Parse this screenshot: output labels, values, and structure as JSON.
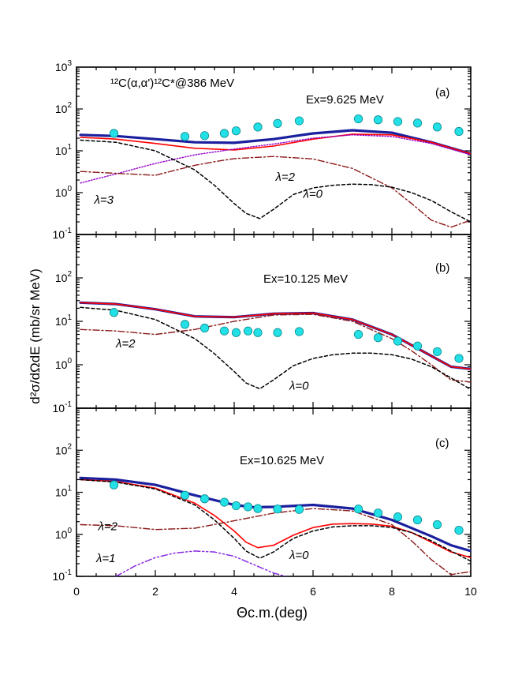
{
  "figure": {
    "ylabel": "d²σ/dΩdE (mb/sr MeV)",
    "xlabel": "Θc.m.(deg)",
    "reaction_title": "¹²C(α,α')¹²C*@386 MeV"
  },
  "chart_data": [
    {
      "type": "line",
      "panel": "(a)",
      "title": "¹²C(α,α')¹²C*@386 MeV",
      "energy_label": "Ex=9.625 MeV",
      "xlabel": "Θc.m.(deg)",
      "ylabel": "d²σ/dΩdE (mb/sr MeV)",
      "xlim": [
        0,
        10
      ],
      "ylim": [
        0.1,
        1000
      ],
      "yscale": "log",
      "xticks": [
        "0",
        "2",
        "4",
        "6",
        "8",
        "10"
      ],
      "yticks": [
        "10-1",
        "100",
        "101",
        "102",
        "103"
      ],
      "data_points": {
        "x": [
          0.95,
          2.75,
          3.25,
          3.75,
          4.05,
          4.6,
          5.1,
          5.65,
          7.15,
          7.65,
          8.15,
          8.65,
          9.15,
          9.7
        ],
        "y": [
          26,
          22,
          23,
          26,
          30,
          37,
          45,
          52,
          58,
          55,
          50,
          46,
          37,
          29
        ]
      },
      "series": [
        {
          "style": "total",
          "color": "#1a1f9e",
          "x": [
            0.1,
            1,
            2,
            3,
            4,
            5,
            6,
            7,
            8,
            9,
            10
          ],
          "y": [
            24,
            22.5,
            19,
            16,
            15.5,
            19,
            26,
            31,
            27,
            16,
            8.5
          ]
        },
        {
          "style": "sum",
          "color": "#ff0000",
          "x": [
            0.1,
            1,
            2,
            3,
            4,
            5,
            6,
            7,
            8,
            9,
            10
          ],
          "y": [
            21,
            19,
            15,
            11.5,
            10.5,
            13,
            19,
            25,
            24,
            16,
            8.5
          ]
        },
        {
          "style": "dotted",
          "color": "#9400c8",
          "label": "λ=3",
          "x": [
            0.1,
            1,
            2,
            3,
            4,
            5,
            6,
            7,
            8,
            9,
            10
          ],
          "y": [
            1.7,
            2.8,
            5,
            8,
            11,
            14.5,
            20,
            24,
            22,
            15,
            8
          ]
        },
        {
          "style": "dash-dot",
          "color": "#8b1a1a",
          "label": "λ=2",
          "x": [
            0.1,
            1,
            2,
            3,
            3.5,
            4,
            5,
            6,
            7,
            8,
            8.5,
            9,
            9.5,
            10
          ],
          "y": [
            3.2,
            2.9,
            2.6,
            4.5,
            5.5,
            6.5,
            7.3,
            6.4,
            3.8,
            1.3,
            0.55,
            0.22,
            0.15,
            0.22
          ]
        },
        {
          "style": "dashed",
          "color": "#000000",
          "label": "λ=0",
          "x": [
            0.1,
            1,
            2,
            3,
            3.5,
            4,
            4.3,
            4.65,
            5,
            5.5,
            6,
            6.5,
            7,
            7.5,
            8,
            8.5,
            9,
            9.5,
            10
          ],
          "y": [
            18,
            16,
            10,
            3.5,
            1.5,
            0.55,
            0.32,
            0.24,
            0.4,
            0.9,
            1.3,
            1.5,
            1.6,
            1.55,
            1.35,
            1.0,
            0.65,
            0.35,
            0.2
          ]
        }
      ],
      "annotations": [
        "λ=2",
        "λ=3",
        "λ=0"
      ]
    },
    {
      "type": "line",
      "panel": "(b)",
      "energy_label": "Ex=10.125 MeV",
      "xlabel": "Θc.m.(deg)",
      "ylabel": "d²σ/dΩdE (mb/sr MeV)",
      "xlim": [
        0,
        10
      ],
      "ylim": [
        0.1,
        1000
      ],
      "yscale": "log",
      "yticks": [
        "10-1",
        "100",
        "101",
        "102"
      ],
      "data_points": {
        "x": [
          0.95,
          2.75,
          3.25,
          3.75,
          4.05,
          4.35,
          4.6,
          5.1,
          5.65,
          7.15,
          7.65,
          8.15,
          8.65,
          9.15,
          9.7
        ],
        "y": [
          16,
          8.5,
          7,
          6,
          5.5,
          6,
          5.5,
          5.5,
          5.8,
          5,
          4.2,
          3.5,
          2.7,
          2,
          1.4
        ]
      },
      "series": [
        {
          "style": "total",
          "color": "#1a1f9e",
          "x": [
            0.1,
            1,
            2,
            3,
            4,
            5,
            6,
            7,
            8,
            9,
            9.5,
            10
          ],
          "y": [
            27,
            25,
            19,
            13,
            12.5,
            15,
            15.5,
            11,
            5,
            1.6,
            0.9,
            0.8
          ]
        },
        {
          "style": "sum",
          "color": "#ff0000",
          "x": [
            0.1,
            1,
            2,
            3,
            4,
            5,
            6,
            7,
            8,
            9,
            9.5,
            10
          ],
          "y": [
            27,
            25,
            19,
            13,
            12.5,
            15,
            15.5,
            11,
            5,
            1.6,
            0.9,
            0.8
          ]
        },
        {
          "style": "dash-dot",
          "color": "#8b1a1a",
          "label": "λ=2",
          "x": [
            0.1,
            1,
            2,
            3,
            4,
            5,
            6,
            7,
            8,
            8.5,
            9,
            9.5,
            10
          ],
          "y": [
            6.5,
            6,
            5,
            6.5,
            10,
            14,
            14.5,
            10,
            4,
            2.1,
            1.0,
            0.45,
            0.4
          ]
        },
        {
          "style": "dashed",
          "color": "#000000",
          "label": "λ=0",
          "x": [
            0.1,
            1,
            2,
            3,
            3.5,
            4,
            4.3,
            4.65,
            5,
            5.5,
            6,
            6.5,
            7,
            7.5,
            8,
            8.5,
            9,
            9.5,
            10
          ],
          "y": [
            21,
            18,
            11,
            4,
            1.8,
            0.7,
            0.38,
            0.28,
            0.45,
            0.95,
            1.4,
            1.7,
            1.85,
            1.85,
            1.7,
            1.35,
            0.9,
            0.5,
            0.27
          ]
        }
      ],
      "annotations": [
        "λ=2",
        "λ=0"
      ]
    },
    {
      "type": "line",
      "panel": "(c)",
      "energy_label": "Ex=10.625 MeV",
      "xlabel": "Θc.m.(deg)",
      "ylabel": "d²σ/dΩdE (mb/sr MeV)",
      "xlim": [
        0,
        10
      ],
      "ylim": [
        0.1,
        1000
      ],
      "yscale": "log",
      "yticks": [
        "10-1",
        "100",
        "101",
        "102"
      ],
      "data_points": {
        "x": [
          0.95,
          2.75,
          3.25,
          3.75,
          4.05,
          4.35,
          4.6,
          5.1,
          5.65,
          7.15,
          7.65,
          8.15,
          8.65,
          9.15,
          9.7
        ],
        "y": [
          15,
          8.5,
          7,
          5.8,
          4.8,
          4.5,
          4.1,
          4.0,
          3.9,
          4.0,
          3.2,
          2.6,
          2.2,
          1.7,
          1.25
        ]
      },
      "series": [
        {
          "style": "total",
          "color": "#1a1f9e",
          "x": [
            0.1,
            1,
            2,
            3,
            4,
            4.5,
            5,
            6,
            7,
            8,
            9,
            9.5,
            10
          ],
          "y": [
            22,
            20,
            15,
            8.5,
            5,
            4.4,
            4.5,
            5,
            4.1,
            2.2,
            0.9,
            0.55,
            0.4
          ]
        },
        {
          "style": "sum",
          "color": "#ff0000",
          "x": [
            0.1,
            1,
            2,
            3,
            3.5,
            4,
            4.3,
            4.6,
            5,
            5.5,
            6,
            6.5,
            7,
            7.5,
            8,
            8.5,
            9,
            9.5,
            10
          ],
          "y": [
            20,
            18,
            12.5,
            5.5,
            2.8,
            1.2,
            0.65,
            0.48,
            0.55,
            0.95,
            1.45,
            1.75,
            1.8,
            1.75,
            1.55,
            1.1,
            0.65,
            0.38,
            0.28
          ]
        },
        {
          "style": "dash-dot",
          "color": "#8b1a1a",
          "label": "λ=2",
          "x": [
            0.1,
            1,
            2,
            3,
            4,
            5,
            6,
            7,
            8,
            8.5,
            9,
            9.5,
            10
          ],
          "y": [
            1.7,
            1.6,
            1.3,
            1.4,
            2.1,
            3.2,
            4.1,
            3.6,
            1.7,
            0.7,
            0.25,
            0.11,
            0.13
          ]
        },
        {
          "style": "dashed",
          "color": "#000000",
          "label": "λ=0",
          "x": [
            0.1,
            1,
            2,
            3,
            3.5,
            4,
            4.3,
            4.65,
            5,
            5.5,
            6,
            6.5,
            7,
            7.5,
            8,
            8.5,
            9,
            9.5,
            10
          ],
          "y": [
            20,
            17.5,
            12,
            5,
            2.2,
            0.8,
            0.4,
            0.27,
            0.38,
            0.8,
            1.2,
            1.5,
            1.6,
            1.6,
            1.45,
            1.1,
            0.7,
            0.4,
            0.23
          ]
        },
        {
          "style": "dash-dot-dot",
          "color": "#8a2be2",
          "label": "λ=1",
          "x": [
            1.0,
            1.5,
            2,
            2.5,
            3,
            3.5,
            4,
            4.5,
            5,
            5.3
          ],
          "y": [
            0.1,
            0.18,
            0.28,
            0.36,
            0.4,
            0.38,
            0.3,
            0.19,
            0.12,
            0.1
          ]
        }
      ],
      "annotations": [
        "λ=2",
        "λ=1",
        "λ=0"
      ]
    }
  ]
}
